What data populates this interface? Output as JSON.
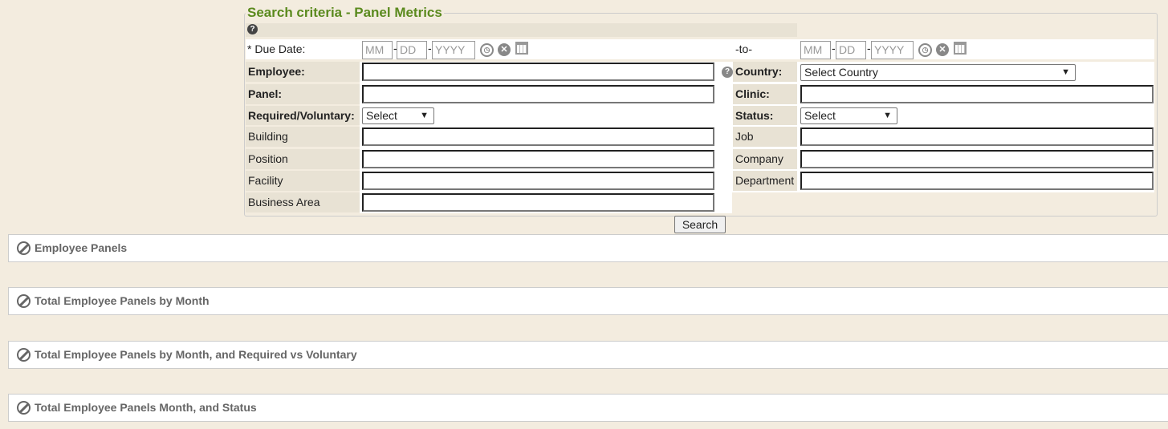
{
  "legend": "Search criteria - Panel Metrics",
  "due_date": {
    "label": "* Due Date:",
    "to": "-to-",
    "mm": "MM",
    "dd": "DD",
    "yyyy": "YYYY",
    "sep": "-"
  },
  "fields": {
    "employee": "Employee:",
    "panel": "Panel:",
    "required_voluntary": "Required/Voluntary:",
    "building": "Building",
    "position": "Position",
    "facility": "Facility",
    "business_area": "Business Area",
    "country": "Country:",
    "clinic": "Clinic:",
    "status": "Status:",
    "job": "Job",
    "company": "Company",
    "department": "Department"
  },
  "selects": {
    "country": "Select Country",
    "required_voluntary": "Select",
    "status": "Select"
  },
  "search_label": "Search",
  "panels": [
    "Employee Panels",
    "Total Employee Panels by Month",
    "Total Employee Panels by Month, and Required vs Voluntary",
    "Total Employee Panels Month, and Status"
  ],
  "colors": {
    "legend": "#5b8a1e",
    "background": "#f3ecdf",
    "label_cell": "#e8e2d4"
  }
}
